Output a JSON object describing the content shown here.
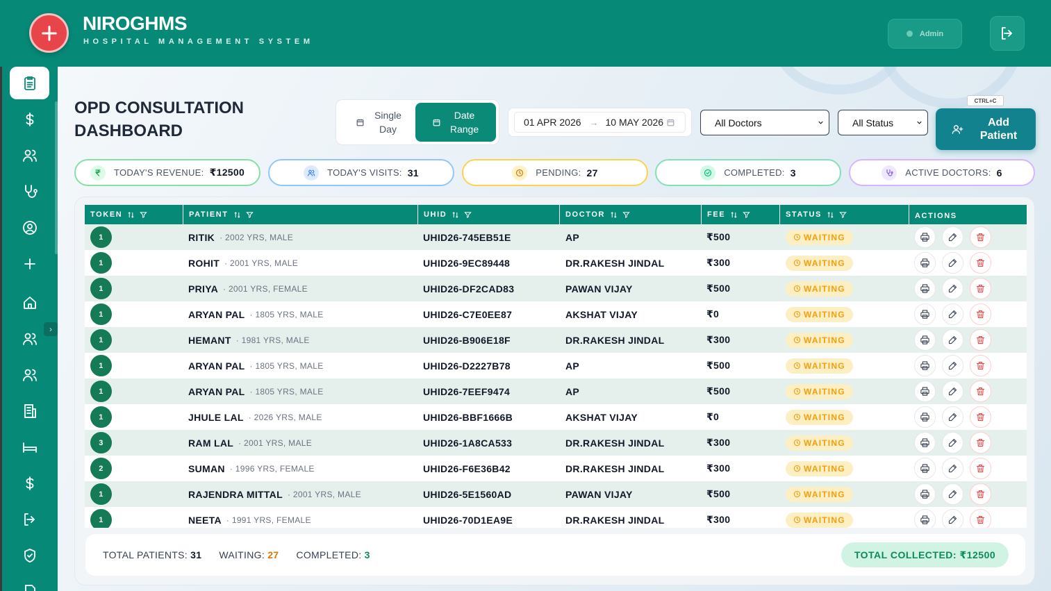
{
  "header": {
    "brand": "NIROGHMS",
    "subtitle": "HOSPITAL MANAGEMENT SYSTEM",
    "admin_label": "Admin",
    "accent": "#068a77",
    "logo_color": "#e8454b"
  },
  "sidebar": {
    "items": [
      {
        "icon": "clipboard-icon",
        "active": true
      },
      {
        "icon": "dollar-icon"
      },
      {
        "icon": "users-icon"
      },
      {
        "icon": "stethoscope-icon"
      },
      {
        "icon": "user-circle-icon"
      },
      {
        "icon": "plus-icon"
      },
      {
        "icon": "home-icon"
      },
      {
        "icon": "users-icon"
      },
      {
        "icon": "users-icon"
      },
      {
        "icon": "building-icon"
      },
      {
        "icon": "bed-icon"
      },
      {
        "icon": "dollar-icon"
      },
      {
        "icon": "logout-icon"
      },
      {
        "icon": "shield-check-icon"
      },
      {
        "icon": "document-icon"
      }
    ]
  },
  "page": {
    "title": "OPD CONSULTATION DASHBOARD"
  },
  "filters": {
    "mode_single": "Single Day",
    "mode_range": "Date Range",
    "selected_mode": "Date Range",
    "date_from": "01 APR 2026",
    "date_to": "10 MAY 2026",
    "doctor_select": "All Doctors",
    "status_select": "All Status",
    "shortcut": "CTRL+C",
    "add_patient": "Add Patient"
  },
  "stats": [
    {
      "label": "TODAY'S REVENUE:",
      "value": "₹12500",
      "color": "#22c55e"
    },
    {
      "label": "TODAY'S VISITS:",
      "value": "31",
      "color": "#60a5fa"
    },
    {
      "label": "PENDING:",
      "value": "27",
      "color": "#f59e0b"
    },
    {
      "label": "COMPLETED:",
      "value": "3",
      "color": "#34d399"
    },
    {
      "label": "ACTIVE DOCTORS:",
      "value": "6",
      "color": "#a78bfa"
    }
  ],
  "table": {
    "columns": [
      "TOKEN",
      "PATIENT",
      "UHID",
      "DOCTOR",
      "FEE",
      "STATUS",
      "ACTIONS"
    ],
    "rows": [
      {
        "token": "1",
        "name": "RITIK",
        "meta": "· 2002 YRS, MALE",
        "uhid": "UHID26-745EB51E",
        "doctor": "AP",
        "fee": "₹500",
        "status": "WAITING"
      },
      {
        "token": "1",
        "name": "ROHIT",
        "meta": "· 2001 YRS, MALE",
        "uhid": "UHID26-9EC89448",
        "doctor": "DR.RAKESH JINDAL",
        "fee": "₹300",
        "status": "WAITING"
      },
      {
        "token": "1",
        "name": "PRIYA",
        "meta": "· 2001 YRS, FEMALE",
        "uhid": "UHID26-DF2CAD83",
        "doctor": "PAWAN VIJAY",
        "fee": "₹500",
        "status": "WAITING"
      },
      {
        "token": "1",
        "name": "ARYAN PAL",
        "meta": "· 1805 YRS, MALE",
        "uhid": "UHID26-C7E0EE87",
        "doctor": "AKSHAT VIJAY",
        "fee": "₹0",
        "status": "WAITING"
      },
      {
        "token": "1",
        "name": "HEMANT",
        "meta": "· 1981 YRS, MALE",
        "uhid": "UHID26-B906E18F",
        "doctor": "DR.RAKESH JINDAL",
        "fee": "₹300",
        "status": "WAITING"
      },
      {
        "token": "1",
        "name": "ARYAN PAL",
        "meta": "· 1805 YRS, MALE",
        "uhid": "UHID26-D2227B78",
        "doctor": "AP",
        "fee": "₹500",
        "status": "WAITING"
      },
      {
        "token": "1",
        "name": "ARYAN PAL",
        "meta": "· 1805 YRS, MALE",
        "uhid": "UHID26-7EEF9474",
        "doctor": "AP",
        "fee": "₹500",
        "status": "WAITING"
      },
      {
        "token": "1",
        "name": "JHULE LAL",
        "meta": "· 2026 YRS, MALE",
        "uhid": "UHID26-BBF1666B",
        "doctor": "AKSHAT VIJAY",
        "fee": "₹0",
        "status": "WAITING"
      },
      {
        "token": "3",
        "name": "RAM LAL",
        "meta": "· 2001 YRS, MALE",
        "uhid": "UHID26-1A8CA533",
        "doctor": "DR.RAKESH JINDAL",
        "fee": "₹300",
        "status": "WAITING"
      },
      {
        "token": "2",
        "name": "SUMAN",
        "meta": "· 1996 YRS, FEMALE",
        "uhid": "UHID26-F6E36B42",
        "doctor": "DR.RAKESH JINDAL",
        "fee": "₹300",
        "status": "WAITING"
      },
      {
        "token": "1",
        "name": "RAJENDRA MITTAL",
        "meta": "· 2001 YRS, MALE",
        "uhid": "UHID26-5E1560AD",
        "doctor": "PAWAN VIJAY",
        "fee": "₹500",
        "status": "WAITING"
      },
      {
        "token": "1",
        "name": "NEETA",
        "meta": "· 1991 YRS, FEMALE",
        "uhid": "UHID26-70D1EA9E",
        "doctor": "DR.RAKESH JINDAL",
        "fee": "₹300",
        "status": "WAITING"
      }
    ]
  },
  "summary": {
    "total_label": "TOTAL PATIENTS:",
    "total_value": "31",
    "waiting_label": "WAITING:",
    "waiting_value": "27",
    "completed_label": "COMPLETED:",
    "completed_value": "3",
    "collected": "TOTAL COLLECTED: ₹12500"
  }
}
